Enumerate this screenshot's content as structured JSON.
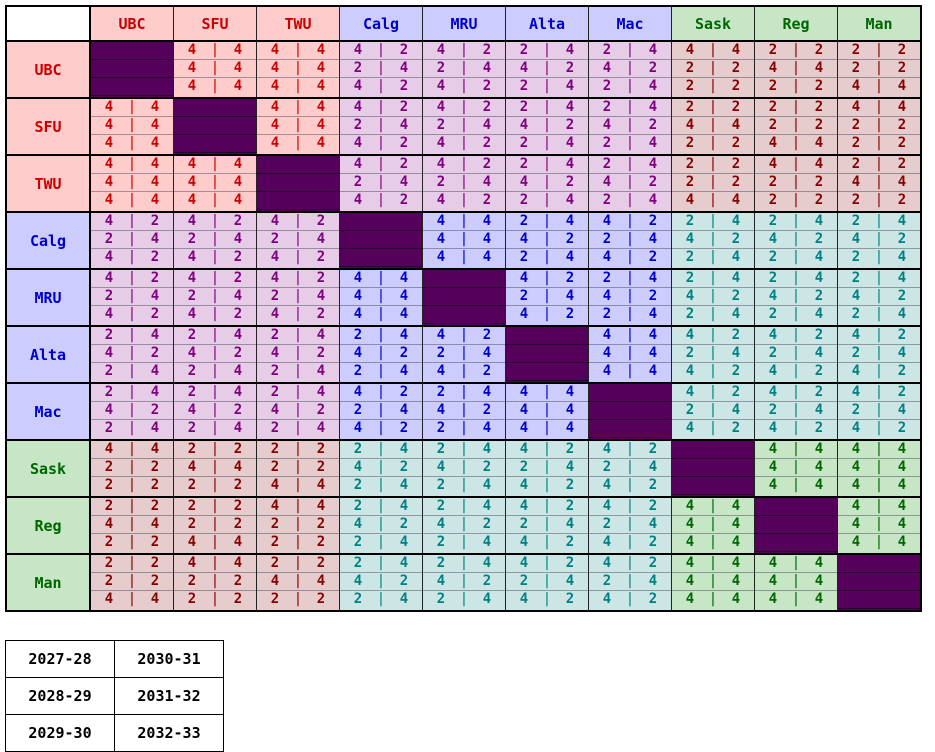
{
  "teams": [
    "UBC",
    "SFU",
    "TWU",
    "Calg",
    "MRU",
    "Alta",
    "Mac",
    "Sask",
    "Reg",
    "Man"
  ],
  "team_groups": [
    "bc",
    "bc",
    "bc",
    "ab",
    "ab",
    "ab",
    "ab",
    "sk",
    "sk",
    "sk"
  ],
  "group_colors": {
    "bc": {
      "bg": "#ffcccc",
      "fg": "#cc0000"
    },
    "ab": {
      "bg": "#ccccff",
      "fg": "#0000cc"
    },
    "sk": {
      "bg": "#c6e6c6",
      "fg": "#006600"
    },
    "bcab": {
      "bg": "#e6cce6",
      "fg": "#800080"
    },
    "bcsk": {
      "bg": "#e6cccc",
      "fg": "#880000"
    },
    "absk": {
      "bg": "#cce6e6",
      "fg": "#008080"
    },
    "diagonal": "#55005a"
  },
  "grid": [
    [
      null,
      [
        "4|4",
        "4|4",
        "4|4"
      ],
      [
        "4|4",
        "4|4",
        "4|4"
      ],
      [
        "4|2",
        "2|4",
        "4|2"
      ],
      [
        "4|2",
        "2|4",
        "4|2"
      ],
      [
        "2|4",
        "4|2",
        "2|4"
      ],
      [
        "2|4",
        "4|2",
        "2|4"
      ],
      [
        "4|4",
        "2|2",
        "2|2"
      ],
      [
        "2|2",
        "4|4",
        "2|2"
      ],
      [
        "2|2",
        "2|2",
        "4|4"
      ]
    ],
    [
      [
        "4|4",
        "4|4",
        "4|4"
      ],
      null,
      [
        "4|4",
        "4|4",
        "4|4"
      ],
      [
        "4|2",
        "2|4",
        "4|2"
      ],
      [
        "4|2",
        "2|4",
        "4|2"
      ],
      [
        "2|4",
        "4|2",
        "2|4"
      ],
      [
        "2|4",
        "4|2",
        "2|4"
      ],
      [
        "2|2",
        "4|4",
        "2|2"
      ],
      [
        "2|2",
        "2|2",
        "4|4"
      ],
      [
        "4|4",
        "2|2",
        "2|2"
      ]
    ],
    [
      [
        "4|4",
        "4|4",
        "4|4"
      ],
      [
        "4|4",
        "4|4",
        "4|4"
      ],
      null,
      [
        "4|2",
        "2|4",
        "4|2"
      ],
      [
        "4|2",
        "2|4",
        "4|2"
      ],
      [
        "2|4",
        "4|2",
        "2|4"
      ],
      [
        "2|4",
        "4|2",
        "2|4"
      ],
      [
        "2|2",
        "2|2",
        "4|4"
      ],
      [
        "4|4",
        "2|2",
        "2|2"
      ],
      [
        "2|2",
        "4|4",
        "2|2"
      ]
    ],
    [
      [
        "4|2",
        "2|4",
        "4|2"
      ],
      [
        "4|2",
        "2|4",
        "4|2"
      ],
      [
        "4|2",
        "2|4",
        "4|2"
      ],
      null,
      [
        "4|4",
        "4|4",
        "4|4"
      ],
      [
        "2|4",
        "4|2",
        "2|4"
      ],
      [
        "4|2",
        "2|4",
        "4|2"
      ],
      [
        "2|4",
        "4|2",
        "2|4"
      ],
      [
        "2|4",
        "4|2",
        "2|4"
      ],
      [
        "2|4",
        "4|2",
        "2|4"
      ]
    ],
    [
      [
        "4|2",
        "2|4",
        "4|2"
      ],
      [
        "4|2",
        "2|4",
        "4|2"
      ],
      [
        "4|2",
        "2|4",
        "4|2"
      ],
      [
        "4|4",
        "4|4",
        "4|4"
      ],
      null,
      [
        "4|2",
        "2|4",
        "4|2"
      ],
      [
        "2|4",
        "4|2",
        "2|4"
      ],
      [
        "2|4",
        "4|2",
        "2|4"
      ],
      [
        "2|4",
        "4|2",
        "2|4"
      ],
      [
        "2|4",
        "4|2",
        "2|4"
      ]
    ],
    [
      [
        "2|4",
        "4|2",
        "2|4"
      ],
      [
        "2|4",
        "4|2",
        "2|4"
      ],
      [
        "2|4",
        "4|2",
        "2|4"
      ],
      [
        "2|4",
        "4|2",
        "2|4"
      ],
      [
        "4|2",
        "2|4",
        "4|2"
      ],
      null,
      [
        "4|4",
        "4|4",
        "4|4"
      ],
      [
        "4|2",
        "2|4",
        "4|2"
      ],
      [
        "4|2",
        "2|4",
        "4|2"
      ],
      [
        "4|2",
        "2|4",
        "4|2"
      ]
    ],
    [
      [
        "2|4",
        "4|2",
        "2|4"
      ],
      [
        "2|4",
        "4|2",
        "2|4"
      ],
      [
        "2|4",
        "4|2",
        "2|4"
      ],
      [
        "4|2",
        "2|4",
        "4|2"
      ],
      [
        "2|4",
        "4|2",
        "2|4"
      ],
      [
        "4|4",
        "4|4",
        "4|4"
      ],
      null,
      [
        "4|2",
        "2|4",
        "4|2"
      ],
      [
        "4|2",
        "2|4",
        "4|2"
      ],
      [
        "4|2",
        "2|4",
        "4|2"
      ]
    ],
    [
      [
        "4|4",
        "2|2",
        "2|2"
      ],
      [
        "2|2",
        "4|4",
        "2|2"
      ],
      [
        "2|2",
        "2|2",
        "4|4"
      ],
      [
        "2|4",
        "4|2",
        "2|4"
      ],
      [
        "2|4",
        "4|2",
        "2|4"
      ],
      [
        "4|2",
        "2|4",
        "4|2"
      ],
      [
        "4|2",
        "2|4",
        "4|2"
      ],
      null,
      [
        "4|4",
        "4|4",
        "4|4"
      ],
      [
        "4|4",
        "4|4",
        "4|4"
      ]
    ],
    [
      [
        "2|2",
        "4|4",
        "2|2"
      ],
      [
        "2|2",
        "2|2",
        "4|4"
      ],
      [
        "4|4",
        "2|2",
        "2|2"
      ],
      [
        "2|4",
        "4|2",
        "2|4"
      ],
      [
        "2|4",
        "4|2",
        "2|4"
      ],
      [
        "4|2",
        "2|4",
        "4|2"
      ],
      [
        "4|2",
        "2|4",
        "4|2"
      ],
      [
        "4|4",
        "4|4",
        "4|4"
      ],
      null,
      [
        "4|4",
        "4|4",
        "4|4"
      ]
    ],
    [
      [
        "2|2",
        "2|2",
        "4|4"
      ],
      [
        "4|4",
        "2|2",
        "2|2"
      ],
      [
        "2|2",
        "4|4",
        "2|2"
      ],
      [
        "2|4",
        "4|2",
        "2|4"
      ],
      [
        "2|4",
        "4|2",
        "2|4"
      ],
      [
        "4|2",
        "2|4",
        "4|2"
      ],
      [
        "4|2",
        "2|4",
        "4|2"
      ],
      [
        "4|4",
        "4|4",
        "4|4"
      ],
      [
        "4|4",
        "4|4",
        "4|4"
      ],
      null
    ]
  ],
  "years": [
    [
      "2027-28",
      "2030-31"
    ],
    [
      "2028-29",
      "2031-32"
    ],
    [
      "2029-30",
      "2032-33"
    ]
  ]
}
